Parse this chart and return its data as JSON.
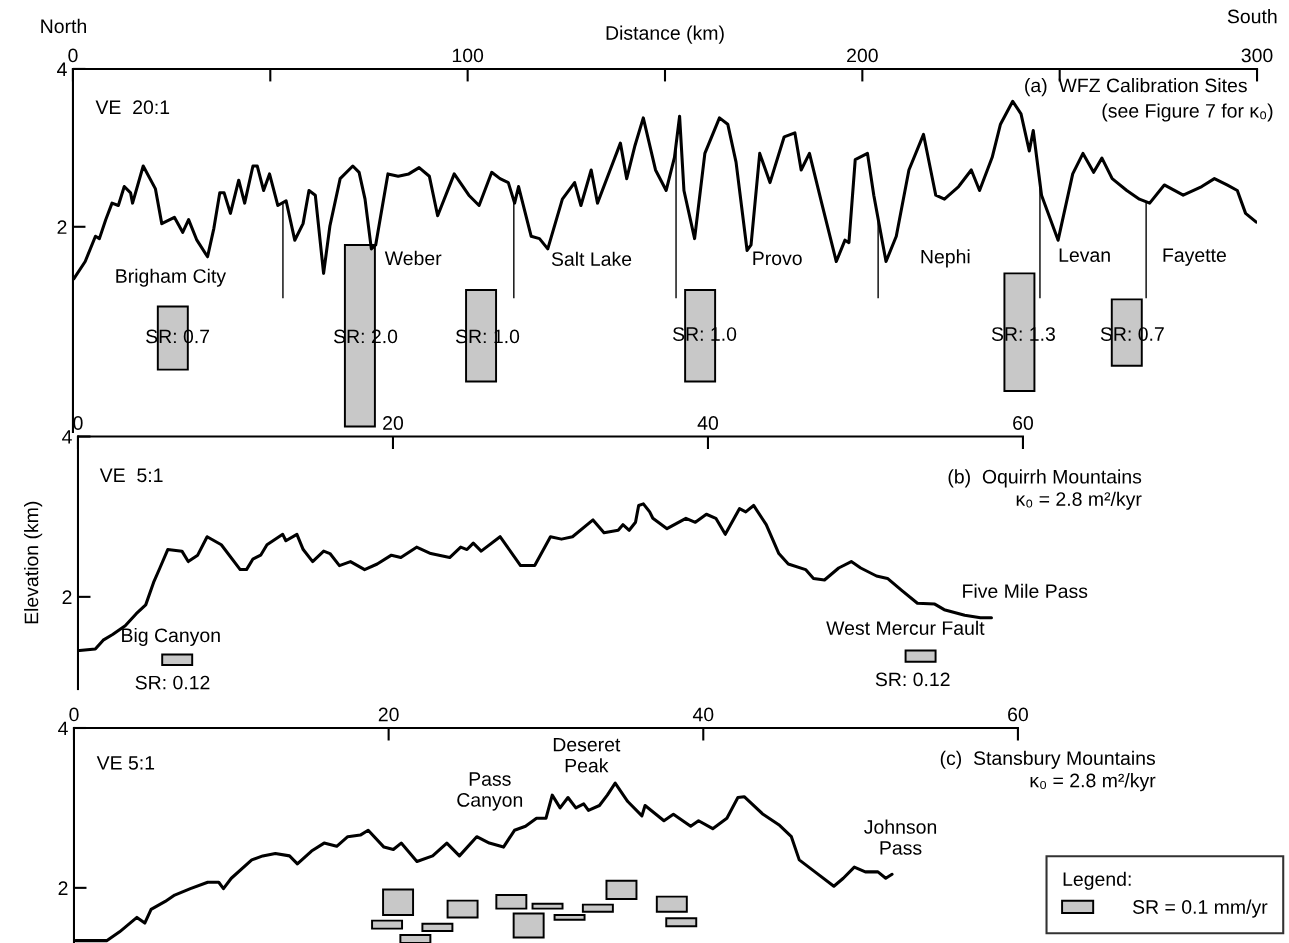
{
  "chart_data": [
    {
      "type": "line",
      "title": "(a)  WFZ Calibration Sites",
      "subtitle": "(see Figure 7 for κ₀)",
      "xlabel": "Distance (km)",
      "xlim": [
        0,
        300
      ],
      "ylim": [
        -0.6,
        4
      ],
      "xticks": [
        0,
        {
          "value": 50,
          "label": null
        },
        100,
        {
          "value": 150,
          "label": null
        },
        200,
        {
          "value": 250,
          "label": null
        },
        300
      ],
      "yticks": [
        2,
        4
      ],
      "annotations": [
        "VE  20:1",
        "North",
        "South",
        "Brigham City",
        "Weber",
        "Salt Lake",
        "Provo",
        "Nephi",
        "Levan",
        "Fayette",
        "SR: 0.7",
        "SR: 2.0",
        "SR: 1.0",
        "SR: 1.0",
        "SR: 1.3",
        "SR: 0.7"
      ],
      "ref_lines": [
        {
          "axis": "x",
          "value": 53.2
        },
        {
          "axis": "x",
          "value": 111.7
        },
        {
          "axis": "x",
          "value": 152.8
        },
        {
          "axis": "x",
          "value": 204.0
        },
        {
          "axis": "x",
          "value": 245.0
        },
        {
          "axis": "x",
          "value": 271.9
        }
      ],
      "series": [
        {
          "color": "#000000",
          "x": [
            0.2,
            3.1,
            5.7,
            6.7,
            8.3,
            9.9,
            11.5,
            13.0,
            14.6,
            15.1,
            17.8,
            20.9,
            22.5,
            25.7,
            27.8,
            29.3,
            31.4,
            34.1,
            35.7,
            37.2,
            38.3,
            39.9,
            42.0,
            43.5,
            45.6,
            46.7,
            48.3,
            49.8,
            51.9,
            54.0,
            56.2,
            58.3,
            59.8,
            61.4,
            63.5,
            65.1,
            67.7,
            70.9,
            72.5,
            74.0,
            75.6,
            76.7,
            79.8,
            82.4,
            85.1,
            87.7,
            90.3,
            92.4,
            96.6,
            100.3,
            102.9,
            106.1,
            108.2,
            110.3,
            111.9,
            112.9,
            116.1,
            118.2,
            120.3,
            124.0,
            127.1,
            128.7,
            131.3,
            132.9,
            136.1,
            138.7,
            140.3,
            142.4,
            144.5,
            147.6,
            150.3,
            152.4,
            153.7,
            154.8,
            157.5,
            160.1,
            163.8,
            165.9,
            168.0,
            170.8,
            171.8,
            174.0,
            176.6,
            180.2,
            182.9,
            184.5,
            186.6,
            189.7,
            193.4,
            195.6,
            196.6,
            198.2,
            201.3,
            202.9,
            206.0,
            208.6,
            211.8,
            215.5,
            218.6,
            220.8,
            224.4,
            227.6,
            229.7,
            232.9,
            235.0,
            238.1,
            240.2,
            242.3,
            243.3,
            245.4,
            249.6,
            253.3,
            255.9,
            258.6,
            260.7,
            263.3,
            267.0,
            270.2,
            272.8,
            276.5,
            281.3,
            286.0,
            289.2,
            292.4,
            295.0,
            297.1,
            299.8
          ],
          "values": [
            1.34,
            1.56,
            1.88,
            1.85,
            2.09,
            2.3,
            2.27,
            2.51,
            2.43,
            2.3,
            2.77,
            2.48,
            2.04,
            2.12,
            1.93,
            2.09,
            1.83,
            1.62,
            1.98,
            2.43,
            2.43,
            2.17,
            2.59,
            2.3,
            2.77,
            2.77,
            2.46,
            2.67,
            2.27,
            2.33,
            1.83,
            2.04,
            2.46,
            2.4,
            1.41,
            2.01,
            2.61,
            2.77,
            2.69,
            2.35,
            1.72,
            1.77,
            2.67,
            2.64,
            2.67,
            2.75,
            2.64,
            2.14,
            2.67,
            2.4,
            2.27,
            2.69,
            2.61,
            2.56,
            2.3,
            2.51,
            1.88,
            1.85,
            1.72,
            2.35,
            2.56,
            2.27,
            2.72,
            2.3,
            2.72,
            3.06,
            2.61,
            3.03,
            3.38,
            2.72,
            2.46,
            2.88,
            3.4,
            2.46,
            1.85,
            2.93,
            3.38,
            3.3,
            2.82,
            1.7,
            1.77,
            2.93,
            2.56,
            3.14,
            3.19,
            2.72,
            2.93,
            2.3,
            1.56,
            1.83,
            1.8,
            2.85,
            2.93,
            2.4,
            1.56,
            1.88,
            2.72,
            3.17,
            2.4,
            2.35,
            2.51,
            2.72,
            2.46,
            2.88,
            3.3,
            3.59,
            3.43,
            2.96,
            3.22,
            2.4,
            1.83,
            2.67,
            2.93,
            2.69,
            2.87,
            2.61,
            2.46,
            2.35,
            2.3,
            2.53,
            2.4,
            2.51,
            2.61,
            2.53,
            2.46,
            2.17,
            2.06
          ]
        },
        {
          "type": "bar",
          "color": "#c8c8c8",
          "x": [
            25.3,
            72.7,
            103.4,
            158.9,
            239.8,
            267.0
          ],
          "base": [
            0.19,
            -0.53,
            0.04,
            0.04,
            -0.08,
            0.24
          ],
          "values": [
            0.8,
            2.3,
            1.16,
            1.16,
            1.49,
            0.84
          ]
        }
      ]
    },
    {
      "type": "line",
      "title": "(b)  Oquirrh Mountains\nκ₀ = 2.8 m²/kyr",
      "ylabel": "Elevation (km)",
      "xlim": [
        0,
        60
      ],
      "ylim": [
        0.85,
        4
      ],
      "xticks": [
        0,
        20,
        40,
        60
      ],
      "yticks": [
        2,
        4
      ],
      "annotations": [
        "VE  5:1",
        "Big Canyon",
        "SR: 0.12",
        "West Mercur Fault",
        "SR: 0.12",
        "Five Mile Pass"
      ],
      "series": [
        {
          "color": "#000000",
          "x": [
            0.1,
            1.1,
            1.6,
            2.2,
            3.0,
            3.7,
            4.3,
            4.8,
            5.2,
            5.7,
            6.6,
            7.0,
            7.6,
            8.2,
            9.1,
            10.3,
            10.7,
            11.1,
            11.6,
            12.0,
            13.0,
            13.2,
            13.9,
            14.3,
            14.9,
            15.6,
            16.0,
            16.6,
            17.3,
            18.2,
            19.0,
            19.9,
            20.5,
            21.5,
            22.4,
            23.6,
            24.3,
            24.7,
            25.1,
            25.6,
            26.8,
            28.1,
            29.0,
            30.0,
            30.7,
            31.4,
            32.7,
            33.4,
            34.3,
            34.6,
            35.0,
            35.4,
            35.6,
            35.9,
            36.3,
            36.5,
            37.4,
            38.6,
            39.2,
            39.9,
            40.5,
            41.1,
            42.0,
            42.4,
            42.9,
            43.7,
            44.5,
            45.1,
            46.2,
            46.7,
            47.4,
            48.3,
            49.1,
            49.7,
            50.7,
            51.4,
            52.3,
            53.3,
            54.4,
            55.0,
            56.3,
            57.3,
            58.0
          ],
          "values": [
            1.33,
            1.35,
            1.46,
            1.53,
            1.64,
            1.79,
            1.9,
            2.18,
            2.36,
            2.59,
            2.57,
            2.44,
            2.52,
            2.75,
            2.65,
            2.34,
            2.34,
            2.47,
            2.52,
            2.65,
            2.78,
            2.7,
            2.78,
            2.59,
            2.44,
            2.57,
            2.54,
            2.39,
            2.44,
            2.34,
            2.41,
            2.52,
            2.49,
            2.62,
            2.54,
            2.49,
            2.62,
            2.59,
            2.67,
            2.57,
            2.75,
            2.39,
            2.39,
            2.75,
            2.72,
            2.75,
            2.96,
            2.8,
            2.83,
            2.9,
            2.83,
            2.93,
            3.14,
            3.16,
            3.06,
            2.98,
            2.85,
            2.98,
            2.93,
            3.03,
            2.98,
            2.78,
            3.1,
            3.06,
            3.14,
            2.9,
            2.54,
            2.41,
            2.34,
            2.23,
            2.21,
            2.36,
            2.44,
            2.36,
            2.26,
            2.23,
            2.08,
            1.92,
            1.91,
            1.84,
            1.77,
            1.74,
            1.74
          ]
        },
        {
          "type": "bar",
          "color": "#c8c8c8",
          "x": [
            6.3,
            53.5
          ],
          "base": [
            1.15,
            1.19
          ],
          "values": [
            0.13,
            0.14
          ]
        }
      ]
    },
    {
      "type": "line",
      "title": "(c)  Stansbury Mountains\nκ₀ = 2.8 m²/kyr",
      "xlim": [
        0,
        60
      ],
      "ylim": [
        1.31,
        4
      ],
      "xticks": [
        0,
        20,
        40,
        60
      ],
      "yticks": [
        2,
        4
      ],
      "legend": "bottom right",
      "legend_title": "Legend:",
      "annotations": [
        "VE 5:1",
        "Pass\nCanyon",
        "Deseret\nPeak",
        "Johnson\nPass"
      ],
      "series": [
        {
          "color": "#000000",
          "x": [
            0.1,
            2.1,
            2.9,
            4.0,
            4.5,
            4.9,
            5.8,
            6.4,
            7.4,
            8.5,
            9.2,
            9.5,
            10.0,
            11.3,
            12.0,
            12.8,
            13.7,
            14.2,
            15.1,
            15.9,
            16.7,
            17.4,
            18.2,
            18.7,
            19.7,
            20.3,
            20.8,
            21.8,
            22.8,
            23.7,
            24.5,
            25.6,
            26.4,
            27.3,
            28.0,
            28.7,
            29.4,
            30.0,
            30.4,
            30.9,
            31.4,
            31.9,
            32.4,
            32.7,
            33.4,
            33.9,
            34.4,
            35.2,
            36.1,
            36.3,
            37.5,
            38.1,
            39.2,
            39.7,
            40.6,
            41.5,
            42.2,
            42.6,
            43.8,
            44.8,
            45.6,
            46.1,
            47.1,
            48.3,
            48.9,
            49.6,
            50.3,
            51.1,
            51.6,
            52.0
          ],
          "values": [
            1.34,
            1.34,
            1.45,
            1.63,
            1.56,
            1.73,
            1.83,
            1.91,
            1.99,
            2.07,
            2.07,
            1.99,
            2.12,
            2.35,
            2.4,
            2.43,
            2.4,
            2.3,
            2.46,
            2.56,
            2.52,
            2.64,
            2.66,
            2.72,
            2.51,
            2.48,
            2.56,
            2.33,
            2.4,
            2.56,
            2.4,
            2.64,
            2.56,
            2.51,
            2.72,
            2.77,
            2.87,
            2.87,
            3.16,
            3.0,
            3.13,
            3.0,
            3.05,
            2.97,
            3.03,
            3.16,
            3.31,
            3.08,
            2.9,
            3.03,
            2.84,
            2.92,
            2.77,
            2.84,
            2.74,
            2.87,
            3.13,
            3.14,
            2.92,
            2.79,
            2.64,
            2.35,
            2.2,
            2.02,
            2.12,
            2.26,
            2.2,
            2.2,
            2.12,
            2.17
          ]
        },
        {
          "type": "bar",
          "name": "SR = 0.1 mm/yr",
          "color": "#c8c8c8",
          "x": [
            19.9,
            20.6,
            21.7,
            23.1,
            24.7,
            27.8,
            28.9,
            30.1,
            31.5,
            33.3,
            34.8,
            38.0,
            38.6
          ],
          "base": [
            1.49,
            1.66,
            1.31,
            1.46,
            1.63,
            1.74,
            1.38,
            1.74,
            1.6,
            1.7,
            1.86,
            1.7,
            1.52
          ],
          "values": [
            0.1,
            0.32,
            0.1,
            0.09,
            0.21,
            0.17,
            0.3,
            0.06,
            0.06,
            0.09,
            0.23,
            0.19,
            0.1
          ]
        }
      ]
    }
  ]
}
